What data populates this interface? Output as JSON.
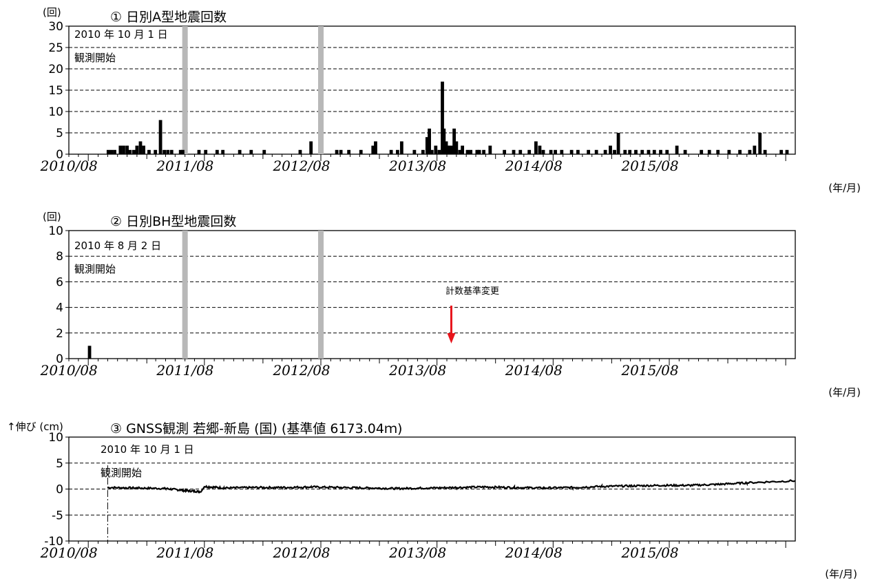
{
  "chart_data": [
    {
      "type": "bar",
      "title": "① 日別A型地震回数",
      "ylabel": "(回)",
      "xlabel": "(年/月)",
      "ylim": [
        0,
        30
      ],
      "yticks": [
        0,
        5,
        10,
        15,
        20,
        25,
        30
      ],
      "xlim": [
        "2010-06-01",
        "2016-08-31"
      ],
      "xtick_labels": [
        "2010/08",
        "2011/08",
        "2012/08",
        "2013/08",
        "2014/08",
        "2015/08"
      ],
      "grid": "dashed",
      "annotation": [
        "2010 年 10 月 1 日",
        "観測開始"
      ],
      "gaps": [
        "2011-06-01",
        "2012-08-01"
      ],
      "bars": [
        [
          "2010-10-03",
          1
        ],
        [
          "2010-10-13",
          1
        ],
        [
          "2010-10-23",
          1
        ],
        [
          "2010-11-10",
          2
        ],
        [
          "2010-11-20",
          2
        ],
        [
          "2010-12-01",
          2
        ],
        [
          "2010-12-10",
          1
        ],
        [
          "2010-12-22",
          1
        ],
        [
          "2011-01-01",
          2
        ],
        [
          "2011-01-12",
          3
        ],
        [
          "2011-01-22",
          2
        ],
        [
          "2011-02-08",
          1
        ],
        [
          "2011-02-28",
          1
        ],
        [
          "2011-03-16",
          8
        ],
        [
          "2011-03-28",
          1
        ],
        [
          "2011-04-08",
          1
        ],
        [
          "2011-04-20",
          1
        ],
        [
          "2011-05-18",
          1
        ],
        [
          "2011-05-25",
          1
        ],
        [
          "2011-07-15",
          1
        ],
        [
          "2011-08-05",
          1
        ],
        [
          "2011-09-10",
          1
        ],
        [
          "2011-09-28",
          1
        ],
        [
          "2011-11-20",
          1
        ],
        [
          "2011-12-26",
          1
        ],
        [
          "2012-02-05",
          1
        ],
        [
          "2012-05-28",
          1
        ],
        [
          "2012-07-01",
          3
        ],
        [
          "2012-09-20",
          1
        ],
        [
          "2012-10-03",
          1
        ],
        [
          "2012-10-28",
          1
        ],
        [
          "2012-12-05",
          1
        ],
        [
          "2013-01-12",
          2
        ],
        [
          "2013-01-20",
          3
        ],
        [
          "2013-03-10",
          1
        ],
        [
          "2013-03-30",
          1
        ],
        [
          "2013-04-12",
          3
        ],
        [
          "2013-05-22",
          1
        ],
        [
          "2013-06-18",
          1
        ],
        [
          "2013-07-01",
          4
        ],
        [
          "2013-07-08",
          6
        ],
        [
          "2013-07-16",
          1
        ],
        [
          "2013-07-28",
          2
        ],
        [
          "2013-08-08",
          1
        ],
        [
          "2013-08-18",
          17
        ],
        [
          "2013-08-23",
          6
        ],
        [
          "2013-08-30",
          3
        ],
        [
          "2013-09-05",
          2
        ],
        [
          "2013-09-10",
          2
        ],
        [
          "2013-09-18",
          2
        ],
        [
          "2013-09-24",
          6
        ],
        [
          "2013-10-01",
          3
        ],
        [
          "2013-10-12",
          1
        ],
        [
          "2013-10-20",
          2
        ],
        [
          "2013-11-05",
          1
        ],
        [
          "2013-11-15",
          1
        ],
        [
          "2013-12-05",
          1
        ],
        [
          "2013-12-12",
          1
        ],
        [
          "2013-12-26",
          1
        ],
        [
          "2014-01-15",
          2
        ],
        [
          "2014-03-01",
          1
        ],
        [
          "2014-03-30",
          1
        ],
        [
          "2014-04-20",
          1
        ],
        [
          "2014-05-18",
          1
        ],
        [
          "2014-06-08",
          3
        ],
        [
          "2014-06-20",
          2
        ],
        [
          "2014-07-01",
          1
        ],
        [
          "2014-07-25",
          1
        ],
        [
          "2014-08-08",
          1
        ],
        [
          "2014-08-28",
          1
        ],
        [
          "2014-09-28",
          1
        ],
        [
          "2014-10-18",
          1
        ],
        [
          "2014-11-20",
          1
        ],
        [
          "2014-12-15",
          1
        ],
        [
          "2015-01-12",
          1
        ],
        [
          "2015-01-28",
          2
        ],
        [
          "2015-02-10",
          1
        ],
        [
          "2015-02-22",
          5
        ],
        [
          "2015-03-15",
          1
        ],
        [
          "2015-03-30",
          1
        ],
        [
          "2015-04-18",
          1
        ],
        [
          "2015-05-08",
          1
        ],
        [
          "2015-05-28",
          1
        ],
        [
          "2015-06-15",
          1
        ],
        [
          "2015-07-05",
          1
        ],
        [
          "2015-07-25",
          1
        ],
        [
          "2015-08-25",
          2
        ],
        [
          "2015-09-20",
          1
        ],
        [
          "2015-11-10",
          1
        ],
        [
          "2015-12-05",
          1
        ],
        [
          "2016-01-01",
          1
        ],
        [
          "2016-02-05",
          1
        ],
        [
          "2016-03-10",
          1
        ],
        [
          "2016-04-10",
          1
        ],
        [
          "2016-04-25",
          2
        ],
        [
          "2016-05-12",
          5
        ],
        [
          "2016-05-28",
          1
        ],
        [
          "2016-07-18",
          1
        ],
        [
          "2016-08-05",
          1
        ]
      ]
    },
    {
      "type": "bar",
      "title": "② 日別BH型地震回数",
      "ylabel": "(回)",
      "xlabel": "(年/月)",
      "ylim": [
        0,
        10
      ],
      "yticks": [
        0,
        2,
        4,
        6,
        8,
        10
      ],
      "xlim": [
        "2010-06-01",
        "2016-08-31"
      ],
      "xtick_labels": [
        "2010/08",
        "2011/08",
        "2012/08",
        "2013/08",
        "2014/08",
        "2015/08"
      ],
      "grid": "dashed",
      "annotation": [
        "2010 年 8 月 2 日",
        "観測開始"
      ],
      "gaps": [
        "2011-06-01",
        "2012-08-01"
      ],
      "event": {
        "label": "計数基準変更",
        "date": "2013-09-15"
      },
      "bars": [
        [
          "2010-08-05",
          1
        ]
      ]
    },
    {
      "type": "line",
      "title": "③ GNSS観測 若郷-新島 (国) (基準値 6173.04ｍ)",
      "ylabel": "↑伸び (cm)",
      "xlabel": "(年/月)",
      "ylim": [
        -10,
        10
      ],
      "yticks": [
        -10,
        -5,
        0,
        5,
        10
      ],
      "xlim": [
        "2010-06-01",
        "2016-08-31"
      ],
      "xtick_labels": [
        "2010/08",
        "2011/08",
        "2012/08",
        "2013/08",
        "2014/08",
        "2015/08"
      ],
      "grid": "dashed",
      "annotation": [
        "2010 年 10 月 1 日",
        "観測開始"
      ],
      "start_date": "2010-10-01",
      "series": [
        {
          "x": [
            "2010-10-01",
            "2011-01-01",
            "2011-04-01",
            "2011-06-01",
            "2011-07-20",
            "2011-08-01",
            "2011-10-01",
            "2012-01-01",
            "2012-04-01",
            "2012-07-01",
            "2012-10-01",
            "2013-01-01",
            "2013-04-01",
            "2013-07-01",
            "2013-10-01",
            "2014-01-01",
            "2014-04-01",
            "2014-07-01",
            "2014-10-01",
            "2015-01-01",
            "2015-04-01",
            "2015-07-01",
            "2015-10-01",
            "2016-01-01",
            "2016-04-01",
            "2016-08-31"
          ],
          "y": [
            0.3,
            0.2,
            0.1,
            -0.3,
            -0.5,
            0.5,
            0.2,
            0.3,
            0.3,
            0.4,
            0.3,
            0.2,
            0.1,
            0.2,
            0.3,
            0.4,
            0.3,
            0.2,
            0.3,
            0.5,
            0.6,
            0.7,
            0.7,
            0.9,
            1.2,
            1.6
          ]
        }
      ]
    }
  ]
}
